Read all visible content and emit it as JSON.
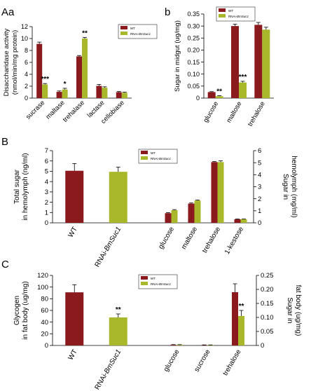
{
  "colors": {
    "wt": "#8b1a1f",
    "rnai": "#a8b82a"
  },
  "chart_data": [
    {
      "panel": "Aa",
      "type": "bar",
      "ylabel": [
        "Disaccharidase activity",
        "(nmol/min/mg protein)"
      ],
      "ylim": [
        0,
        12
      ],
      "yticks": [
        "0",
        "2",
        "4",
        "6",
        "8",
        "10",
        "12"
      ],
      "categories": [
        "sucrase",
        "maltase",
        "trehalase",
        "lactase",
        "cellobiase"
      ],
      "legend": [
        "WT",
        "RNAi-BmSuc1"
      ],
      "series": [
        {
          "name": "WT",
          "values": [
            9.1,
            1.05,
            7.0,
            2.05,
            1.0
          ],
          "errors": [
            0.3,
            0.15,
            0.15,
            0.25,
            0.1
          ]
        },
        {
          "name": "RNAi-BmSuc1",
          "values": [
            2.3,
            1.45,
            10.0,
            1.75,
            0.9
          ],
          "errors": [
            0.15,
            0.2,
            0.2,
            0.15,
            0.1
          ]
        }
      ],
      "significance": [
        "***",
        "*",
        "**",
        "",
        ""
      ]
    },
    {
      "panel": "b",
      "type": "bar",
      "ylabel": [
        "Sugar in midgut (ug/mg)"
      ],
      "ylim": [
        0,
        0.35
      ],
      "yticks": [
        "0",
        "0.05",
        "0.10",
        "0.15",
        "0.20",
        "0.25",
        "0.30",
        "0.35"
      ],
      "categories": [
        "glucose",
        "maltose",
        "trehalose"
      ],
      "legend": [
        "WT",
        "RNAi-BmSuc1"
      ],
      "series": [
        {
          "name": "WT",
          "values": [
            0.025,
            0.3,
            0.305
          ],
          "errors": [
            0.002,
            0.008,
            0.01
          ]
        },
        {
          "name": "RNAi-BmSuc1",
          "values": [
            0.008,
            0.065,
            0.285
          ],
          "errors": [
            0.002,
            0.005,
            0.01
          ]
        }
      ],
      "significance": [
        "**",
        "***",
        ""
      ]
    },
    {
      "panel": "B",
      "type": "bar",
      "left": {
        "ylabel": [
          "Total sugar",
          "in hemolymph (ng/ml)"
        ],
        "ylim": [
          0,
          7
        ],
        "yticks": [
          "0",
          "1",
          "2",
          "3",
          "4",
          "5",
          "6",
          "7"
        ],
        "categories": [
          "WT",
          "RNAi-BmSuc1"
        ],
        "values": [
          5.05,
          4.95
        ],
        "errors": [
          0.7,
          0.45
        ]
      },
      "right": {
        "ylabel": [
          "Sugar in",
          "hemolymph (mg/ml)"
        ],
        "ylim": [
          0,
          6
        ],
        "yticks": [
          "0",
          "1",
          "2",
          "3",
          "4",
          "5",
          "6"
        ],
        "categories": [
          "glucose",
          "maltose",
          "trehalose",
          "1-kestose"
        ],
        "series": [
          {
            "name": "WT",
            "values": [
              0.8,
              1.6,
              5.05,
              0.3
            ],
            "errors": [
              0.05,
              0.05,
              0.05,
              0.02
            ]
          },
          {
            "name": "RNAi-BmSuc1",
            "values": [
              1.05,
              1.85,
              5.05,
              0.3
            ],
            "errors": [
              0.05,
              0.05,
              0.1,
              0.02
            ]
          }
        ]
      },
      "legend": [
        "WT",
        "RNAi-BmSuc1"
      ]
    },
    {
      "panel": "C",
      "type": "bar",
      "left": {
        "ylabel": [
          "Glycogen",
          "in fat body (ug/mg)"
        ],
        "ylim": [
          0,
          120
        ],
        "yticks": [
          "0",
          "20",
          "40",
          "60",
          "80",
          "100",
          "120"
        ],
        "categories": [
          "WT",
          "RNAi-BmSuc1"
        ],
        "values": [
          91,
          48
        ],
        "errors": [
          13,
          6
        ],
        "significance": [
          "",
          "**"
        ]
      },
      "right": {
        "ylabel": [
          "Sugar in",
          "fat body (ug/mg)"
        ],
        "ylim": [
          0,
          0.25
        ],
        "yticks": [
          "0",
          "0.05",
          "0.10",
          "0.15",
          "0.20",
          "0.25"
        ],
        "categories": [
          "glucose",
          "sucrose",
          "trehalose"
        ],
        "series": [
          {
            "name": "WT",
            "values": [
              0.002,
              0.001,
              0.19
            ],
            "errors": [
              0.001,
              0.001,
              0.03
            ]
          },
          {
            "name": "RNAi-BmSuc1",
            "values": [
              0.002,
              0.001,
              0.105
            ],
            "errors": [
              0.001,
              0.001,
              0.02
            ]
          }
        ],
        "significance": [
          "",
          "",
          "**"
        ]
      },
      "legend": [
        "WT",
        "RNAi-BmSuc1"
      ]
    }
  ]
}
